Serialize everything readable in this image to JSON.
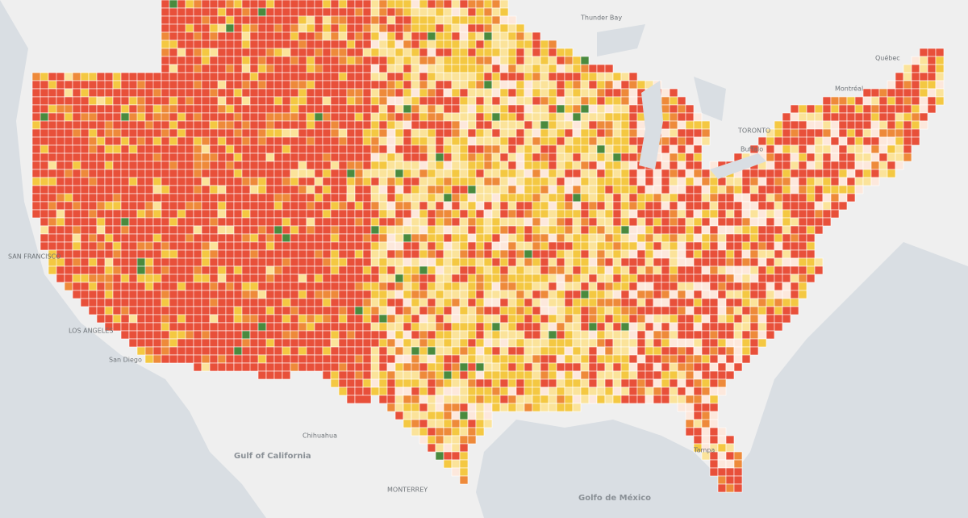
{
  "map": {
    "labels": [
      {
        "text": "Thunder Bay"
      },
      {
        "text": "Québec"
      },
      {
        "text": "Montréal"
      },
      {
        "text": "TORONTO"
      },
      {
        "text": "Buffalo"
      },
      {
        "text": "SAN FRANCISCO"
      },
      {
        "text": "LOS ANGELES"
      },
      {
        "text": "San Diego"
      },
      {
        "text": "Chihuahua"
      },
      {
        "text": "Gulf of California"
      },
      {
        "text": "MONTERREY"
      },
      {
        "text": "Golfo de México"
      },
      {
        "text": "Tampa"
      }
    ]
  }
}
